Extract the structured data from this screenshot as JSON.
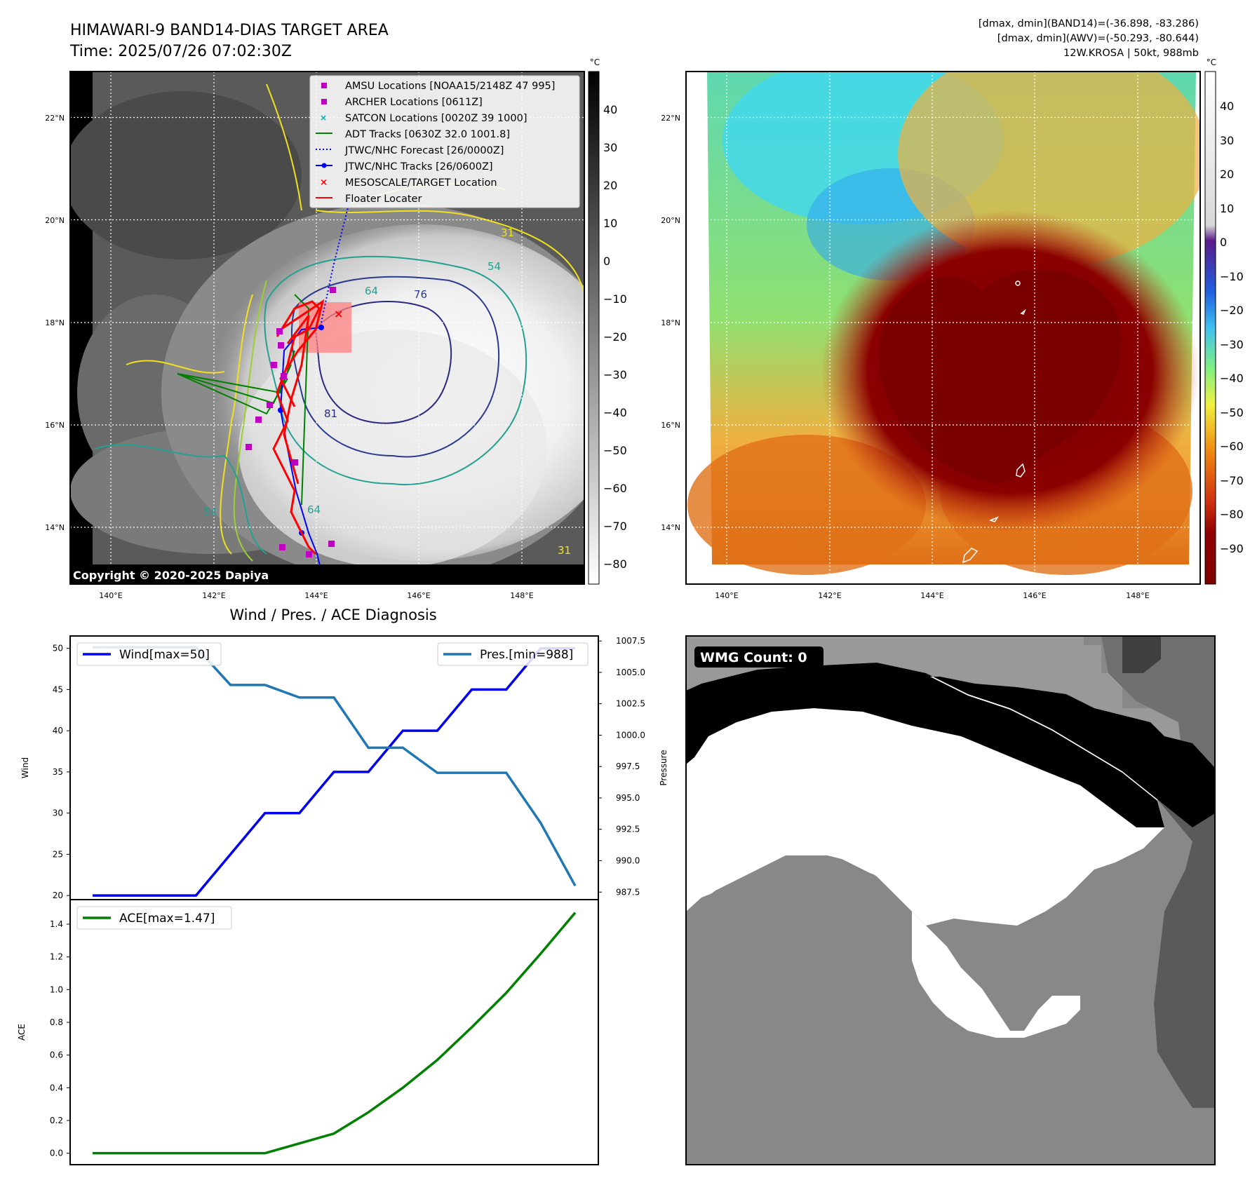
{
  "header_left": {
    "title": "HIMAWARI-9 BAND14-DIAS TARGET AREA",
    "time": "Time: 2025/07/26 07:02:30Z"
  },
  "header_right": {
    "line1": "[dmax, dmin](BAND14)=(-36.898, -83.286)",
    "line2": "[dmax, dmin](AWV)=(-50.293, -80.644)",
    "line3": "12W.KROSA | 50kt, 988mb"
  },
  "map_left": {
    "copyright": "Copyright © 2020-2025 Dapiya",
    "lat_labels": [
      "22°N",
      "20°N",
      "18°N",
      "16°N",
      "14°N"
    ],
    "lon_labels": [
      "140°E",
      "142°E",
      "144°E",
      "146°E",
      "148°E"
    ],
    "colorbar_unit": "°C",
    "colorbar_ticks": [
      "40",
      "30",
      "20",
      "10",
      "0",
      "−10",
      "−20",
      "−30",
      "−40",
      "−50",
      "−60",
      "−70",
      "−80"
    ],
    "contour_labels": [
      "31",
      "54",
      "64",
      "76",
      "81",
      "54",
      "64",
      "31"
    ],
    "legend": [
      {
        "label": "AMSU Locations [NOAA15/2148Z 47 995]",
        "color": "#c000c0",
        "marker": "square"
      },
      {
        "label": "ARCHER Locations [0611Z]",
        "color": "#c000c0",
        "marker": "square"
      },
      {
        "label": "SATCON Locations [0020Z 39 1000]",
        "color": "#00b0b0",
        "marker": "x"
      },
      {
        "label": "ADT Tracks [0630Z 32.0 1001.8]",
        "color": "#008000",
        "marker": "line"
      },
      {
        "label": "JTWC/NHC Forecast [26/0000Z]",
        "color": "#0000ff",
        "marker": "dotted"
      },
      {
        "label": "JTWC/NHC Tracks [26/0600Z]",
        "color": "#0000ff",
        "marker": "line-dot"
      },
      {
        "label": "MESOSCALE/TARGET Location",
        "color": "#ff0000",
        "marker": "x"
      },
      {
        "label": "Floater Locater",
        "color": "#ff0000",
        "marker": "line"
      }
    ]
  },
  "map_right": {
    "lat_labels": [
      "22°N",
      "20°N",
      "18°N",
      "16°N",
      "14°N"
    ],
    "lon_labels": [
      "140°E",
      "142°E",
      "144°E",
      "146°E",
      "148°E"
    ],
    "colorbar_unit": "°C",
    "colorbar_ticks": [
      "40",
      "30",
      "20",
      "10",
      "0",
      "−10",
      "−20",
      "−30",
      "−40",
      "−50",
      "−60",
      "−70",
      "−80",
      "−90"
    ]
  },
  "wmg_panel": {
    "badge": "WMG Count: 0"
  },
  "chart_data": [
    {
      "type": "line",
      "title": "Wind / Pres. / ACE Diagnosis",
      "ylabel": "Wind",
      "y2label": "Pressure",
      "ylim": [
        19.5,
        51.5
      ],
      "y2lim": [
        986.9,
        1007.9
      ],
      "yticks": [
        "50",
        "45",
        "40",
        "35",
        "30",
        "25",
        "20"
      ],
      "y2ticks": [
        "1007.5",
        "1005.0",
        "1002.5",
        "1000.0",
        "997.5",
        "995.0",
        "992.5",
        "990.0",
        "987.5"
      ],
      "x": [
        0,
        1,
        2,
        3,
        4,
        5,
        6,
        7,
        8,
        9,
        10,
        11,
        12,
        13,
        14
      ],
      "series": [
        {
          "name": "Wind[max=50]",
          "color": "#0000ee",
          "axis": "left",
          "values": [
            20,
            20,
            20,
            20,
            25,
            30,
            30,
            35,
            35,
            40,
            40,
            45,
            45,
            50,
            50
          ]
        },
        {
          "name": "Pres.[min=988]",
          "color": "#1f77b4",
          "axis": "right",
          "values": [
            1007,
            1007,
            1007,
            1007,
            1004,
            1004,
            1003,
            1003,
            999,
            999,
            997,
            997,
            997,
            993,
            988
          ]
        }
      ]
    },
    {
      "type": "line",
      "ylabel": "ACE",
      "ylim": [
        -0.07,
        1.55
      ],
      "yticks": [
        "1.4",
        "1.2",
        "1.0",
        "0.8",
        "0.6",
        "0.4",
        "0.2",
        "0.0"
      ],
      "x": [
        0,
        1,
        2,
        3,
        4,
        5,
        6,
        7,
        8,
        9,
        10,
        11,
        12,
        13,
        14
      ],
      "series": [
        {
          "name": "ACE[max=1.47]",
          "color": "#008000",
          "axis": "left",
          "values": [
            0,
            0,
            0,
            0,
            0,
            0,
            0.06,
            0.12,
            0.25,
            0.4,
            0.57,
            0.77,
            0.98,
            1.22,
            1.47
          ]
        }
      ]
    }
  ]
}
